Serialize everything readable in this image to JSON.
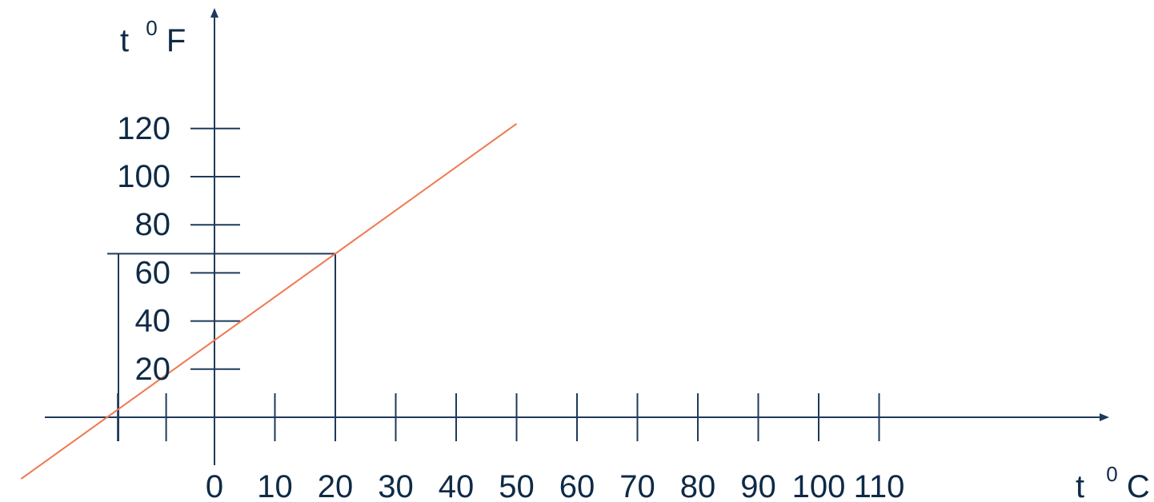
{
  "chart_data": {
    "type": "line",
    "ylabel": "t",
    "ylabel_unit_sup": "0",
    "ylabel_unit": "F",
    "xlabel": "t",
    "xlabel_unit_sup": "0",
    "xlabel_unit": "C",
    "y_ticks": [
      20,
      40,
      60,
      80,
      100,
      120
    ],
    "x_ticks": [
      0,
      10,
      20,
      30,
      40,
      50,
      60,
      70,
      80,
      90,
      100,
      110
    ],
    "xlim": [
      -8,
      114
    ],
    "ylim": [
      -15,
      160
    ],
    "grid": false,
    "series": [
      {
        "x": [
          -32,
          50
        ],
        "y": [
          -25.6,
          122
        ],
        "color": "#f07850"
      }
    ],
    "guide_point": {
      "x": 20,
      "y": 68
    }
  }
}
